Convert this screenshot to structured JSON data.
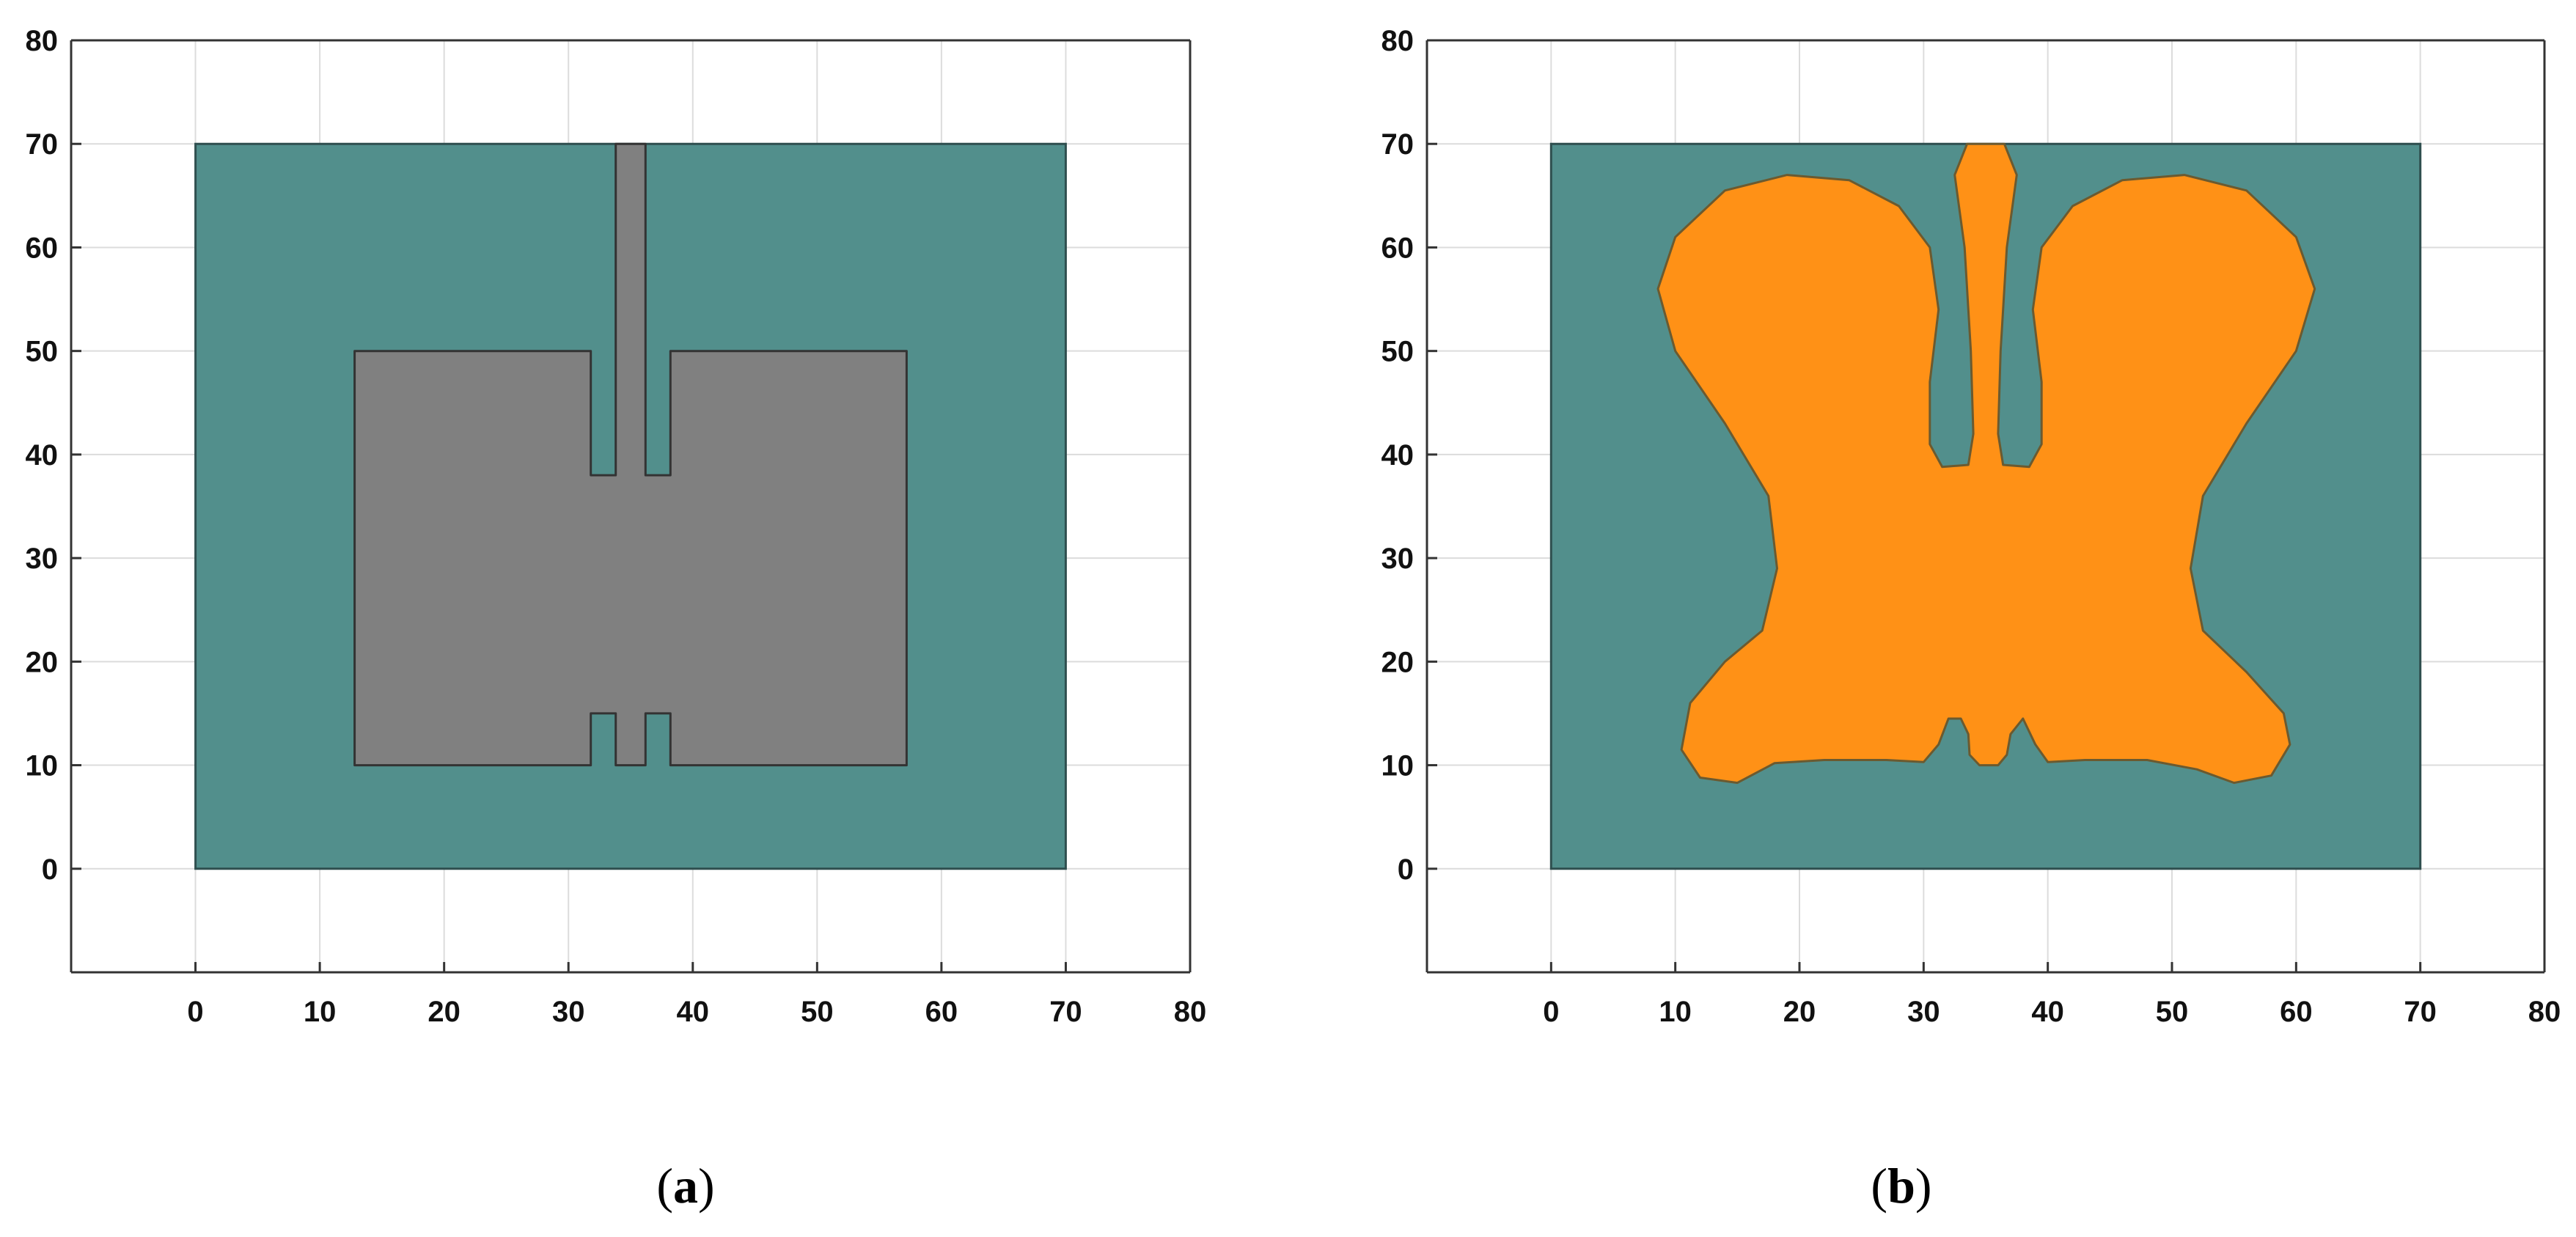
{
  "colors": {
    "background": "#ffffff",
    "grid": "#dcdcdc",
    "axis": "#333333",
    "substrate": "#528f8c",
    "outline": "#2f4f4f",
    "patch_a": "#808080",
    "patch_b": "#ff9116"
  },
  "chart_data": [
    {
      "type": "area",
      "panel_label": "a",
      "xlim": [
        -10,
        80
      ],
      "ylim": [
        -10,
        80
      ],
      "x_ticks": [
        0,
        10,
        20,
        30,
        40,
        50,
        60,
        70,
        80
      ],
      "y_ticks": [
        0,
        10,
        20,
        30,
        40,
        50,
        60,
        70,
        80
      ],
      "grid": true,
      "substrate": {
        "x": [
          0,
          70
        ],
        "y": [
          0,
          70
        ]
      },
      "patch": {
        "shape": "slotted-rectangle",
        "points": [
          [
            12.8,
            10
          ],
          [
            12.8,
            50
          ],
          [
            31.8,
            50
          ],
          [
            31.8,
            38
          ],
          [
            33.8,
            38
          ],
          [
            33.8,
            70
          ],
          [
            36.2,
            70
          ],
          [
            36.2,
            38
          ],
          [
            38.2,
            38
          ],
          [
            38.2,
            50
          ],
          [
            57.2,
            50
          ],
          [
            57.2,
            10
          ],
          [
            38.2,
            10
          ],
          [
            38.2,
            15
          ],
          [
            36.2,
            15
          ],
          [
            36.2,
            10
          ],
          [
            33.8,
            10
          ],
          [
            33.8,
            15
          ],
          [
            31.8,
            15
          ],
          [
            31.8,
            10
          ]
        ]
      }
    },
    {
      "type": "area",
      "panel_label": "b",
      "xlim": [
        -10,
        80
      ],
      "ylim": [
        -10,
        80
      ],
      "x_ticks": [
        0,
        10,
        20,
        30,
        40,
        50,
        60,
        70,
        80
      ],
      "y_ticks": [
        0,
        10,
        20,
        30,
        40,
        50,
        60,
        70,
        80
      ],
      "grid": true,
      "substrate": {
        "x": [
          0,
          70
        ],
        "y": [
          0,
          70
        ]
      },
      "patch": {
        "shape": "butterfly",
        "points": [
          [
            33.5,
            70
          ],
          [
            36.5,
            70
          ],
          [
            37.5,
            67
          ],
          [
            36.7,
            60
          ],
          [
            36.2,
            50
          ],
          [
            36,
            42
          ],
          [
            36.4,
            39
          ],
          [
            38.5,
            38.8
          ],
          [
            39.5,
            41
          ],
          [
            39.5,
            47
          ],
          [
            38.8,
            54
          ],
          [
            39.5,
            60
          ],
          [
            42,
            64
          ],
          [
            46,
            66.5
          ],
          [
            51,
            67
          ],
          [
            56,
            65.5
          ],
          [
            60,
            61
          ],
          [
            61.5,
            56
          ],
          [
            60,
            50
          ],
          [
            56,
            43
          ],
          [
            52.5,
            36
          ],
          [
            51.5,
            29
          ],
          [
            52.5,
            23
          ],
          [
            56,
            19
          ],
          [
            59,
            15
          ],
          [
            59.5,
            12
          ],
          [
            58,
            9
          ],
          [
            55,
            8.3
          ],
          [
            52,
            9.6
          ],
          [
            48,
            10.5
          ],
          [
            43,
            10.5
          ],
          [
            40,
            10.3
          ],
          [
            39,
            12
          ],
          [
            38,
            14.5
          ],
          [
            37,
            13
          ],
          [
            36.7,
            11
          ],
          [
            36,
            10
          ],
          [
            34.5,
            10
          ],
          [
            33.7,
            11
          ],
          [
            33.6,
            13
          ],
          [
            33,
            14.5
          ],
          [
            32,
            14.5
          ],
          [
            31.2,
            12
          ],
          [
            30,
            10.3
          ],
          [
            27,
            10.5
          ],
          [
            22,
            10.5
          ],
          [
            18,
            10.2
          ],
          [
            15,
            8.3
          ],
          [
            12,
            8.8
          ],
          [
            10.5,
            11.5
          ],
          [
            11.2,
            16
          ],
          [
            14,
            20
          ],
          [
            17,
            23
          ],
          [
            18.2,
            29
          ],
          [
            17.5,
            36
          ],
          [
            14,
            43
          ],
          [
            10,
            50
          ],
          [
            8.6,
            56
          ],
          [
            10,
            61
          ],
          [
            14,
            65.5
          ],
          [
            19,
            67
          ],
          [
            24,
            66.5
          ],
          [
            28,
            64
          ],
          [
            30.5,
            60
          ],
          [
            31.2,
            54
          ],
          [
            30.5,
            47
          ],
          [
            30.5,
            41
          ],
          [
            31.5,
            38.8
          ],
          [
            33.6,
            39
          ],
          [
            34,
            42
          ],
          [
            33.8,
            50
          ],
          [
            33.3,
            60
          ],
          [
            32.5,
            67
          ]
        ]
      }
    }
  ]
}
